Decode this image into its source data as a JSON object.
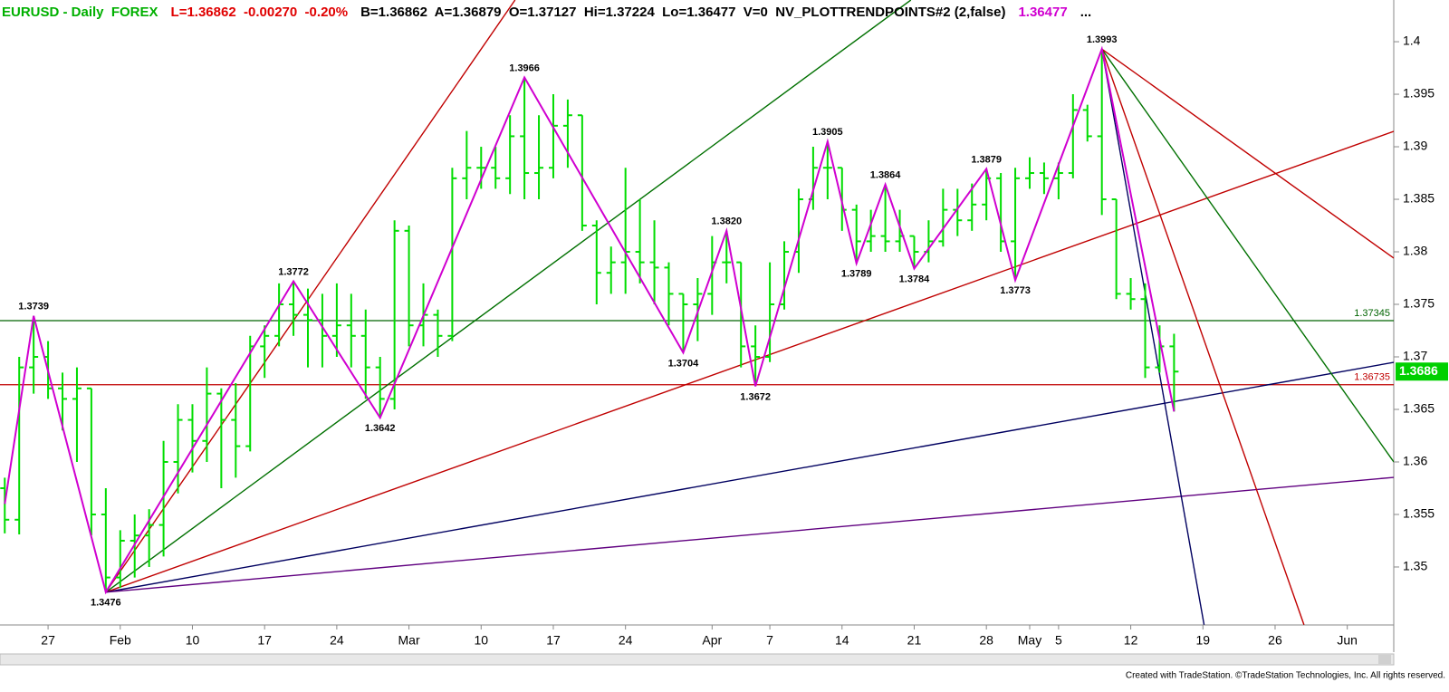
{
  "chart_data": {
    "type": "ohlc",
    "header": [
      {
        "text": "EURUSD - Daily  FOREX",
        "color": "#00b000"
      },
      {
        "text": "L=1.36862  -0.00270  -0.20%",
        "color": "#e00000"
      },
      {
        "text": "B=1.36862  A=1.36879  O=1.37127  Hi=1.37224  Lo=1.36477  V=0  NV_PLOTTRENDPOINTS#2 (2,false)",
        "color": "#000000"
      },
      {
        "text": "1.36477",
        "color": "#d000d0"
      },
      {
        "text": "...",
        "color": "#000000"
      }
    ],
    "footer": "Created with TradeStation. ©TradeStation Technologies, Inc. All rights reserved.",
    "bar_color": "#00dd00",
    "x": [
      -3,
      -2,
      -1,
      0,
      1,
      2,
      3,
      4,
      5,
      6,
      7,
      8,
      9,
      10,
      11,
      12,
      13,
      14,
      15,
      16,
      17,
      18,
      19,
      20,
      21,
      22,
      23,
      24,
      25,
      26,
      27,
      28,
      29,
      30,
      31,
      32,
      33,
      34,
      35,
      36,
      37,
      38,
      39,
      40,
      41,
      42,
      43,
      44,
      45,
      46,
      47,
      48,
      49,
      50,
      51,
      52,
      53,
      54,
      55,
      56,
      57,
      58,
      59,
      60,
      61,
      62,
      63,
      64,
      65,
      66,
      67,
      68,
      69,
      70,
      71,
      72,
      73,
      74,
      75,
      76,
      77,
      78
    ],
    "open": [
      1.3575,
      1.3545,
      1.369,
      1.37,
      1.367,
      1.366,
      1.367,
      1.355,
      1.349,
      1.3525,
      1.353,
      1.354,
      1.36,
      1.364,
      1.362,
      1.3665,
      1.364,
      1.3615,
      1.371,
      1.372,
      1.375,
      1.374,
      1.3735,
      1.372,
      1.373,
      1.372,
      1.369,
      1.366,
      1.382,
      1.373,
      1.374,
      1.372,
      1.387,
      1.388,
      1.388,
      1.387,
      1.391,
      1.3875,
      1.388,
      1.392,
      1.393,
      1.3825,
      1.378,
      1.379,
      1.38,
      1.379,
      1.3785,
      1.376,
      1.375,
      1.376,
      1.379,
      1.379,
      1.371,
      1.37,
      1.375,
      1.38,
      1.385,
      1.388,
      1.388,
      1.384,
      1.381,
      1.3815,
      1.381,
      1.3815,
      1.38,
      1.381,
      1.384,
      1.383,
      1.3845,
      1.387,
      1.381,
      1.387,
      1.3875,
      1.387,
      1.3875,
      1.3935,
      1.391,
      1.385,
      1.376,
      1.3755,
      1.369,
      1.371
    ],
    "high": [
      1.3585,
      1.37,
      1.3739,
      1.3715,
      1.3685,
      1.369,
      1.367,
      1.3575,
      1.3535,
      1.355,
      1.3555,
      1.362,
      1.3655,
      1.3655,
      1.369,
      1.367,
      1.3675,
      1.372,
      1.373,
      1.377,
      1.3772,
      1.3765,
      1.376,
      1.377,
      1.376,
      1.3745,
      1.37,
      1.383,
      1.3825,
      1.377,
      1.3745,
      1.388,
      1.3915,
      1.39,
      1.39,
      1.393,
      1.3966,
      1.393,
      1.395,
      1.3945,
      1.393,
      1.383,
      1.3805,
      1.388,
      1.385,
      1.383,
      1.379,
      1.376,
      1.3775,
      1.3815,
      1.382,
      1.379,
      1.373,
      1.379,
      1.381,
      1.386,
      1.39,
      1.3905,
      1.388,
      1.3845,
      1.384,
      1.3864,
      1.384,
      1.3815,
      1.383,
      1.386,
      1.386,
      1.3865,
      1.3879,
      1.3875,
      1.388,
      1.389,
      1.3885,
      1.3885,
      1.395,
      1.394,
      1.3993,
      1.385,
      1.3775,
      1.377,
      1.373,
      1.3722
    ],
    "low": [
      1.3532,
      1.3531,
      1.3665,
      1.366,
      1.363,
      1.36,
      1.353,
      1.3476,
      1.348,
      1.349,
      1.35,
      1.351,
      1.357,
      1.359,
      1.36,
      1.3575,
      1.3585,
      1.361,
      1.368,
      1.371,
      1.372,
      1.369,
      1.369,
      1.37,
      1.369,
      1.366,
      1.3642,
      1.365,
      1.371,
      1.371,
      1.37,
      1.3715,
      1.385,
      1.386,
      1.386,
      1.3855,
      1.385,
      1.385,
      1.387,
      1.388,
      1.382,
      1.375,
      1.376,
      1.376,
      1.377,
      1.375,
      1.373,
      1.3704,
      1.3715,
      1.374,
      1.377,
      1.369,
      1.3672,
      1.3695,
      1.3745,
      1.378,
      1.384,
      1.385,
      1.382,
      1.3789,
      1.38,
      1.38,
      1.38,
      1.3784,
      1.379,
      1.3805,
      1.3815,
      1.382,
      1.383,
      1.38,
      1.3773,
      1.386,
      1.3855,
      1.385,
      1.387,
      1.3905,
      1.3835,
      1.3755,
      1.3745,
      1.368,
      1.3685,
      1.3648
    ],
    "close": [
      1.3545,
      1.369,
      1.37,
      1.367,
      1.366,
      1.367,
      1.355,
      1.349,
      1.3525,
      1.353,
      1.354,
      1.36,
      1.364,
      1.362,
      1.3665,
      1.364,
      1.3615,
      1.371,
      1.372,
      1.375,
      1.374,
      1.3735,
      1.372,
      1.373,
      1.372,
      1.369,
      1.366,
      1.382,
      1.373,
      1.374,
      1.372,
      1.387,
      1.388,
      1.388,
      1.387,
      1.391,
      1.3875,
      1.388,
      1.392,
      1.393,
      1.3825,
      1.378,
      1.379,
      1.38,
      1.379,
      1.3785,
      1.376,
      1.375,
      1.376,
      1.379,
      1.379,
      1.371,
      1.37,
      1.375,
      1.38,
      1.385,
      1.388,
      1.388,
      1.384,
      1.381,
      1.3815,
      1.381,
      1.3815,
      1.38,
      1.381,
      1.384,
      1.383,
      1.3845,
      1.387,
      1.381,
      1.387,
      1.3875,
      1.387,
      1.3875,
      1.3935,
      1.391,
      1.385,
      1.376,
      1.3755,
      1.369,
      1.371,
      1.3686
    ],
    "pivots": {
      "color": "#d000d0",
      "x": [
        -3,
        -1,
        4,
        17,
        23,
        33,
        44,
        47,
        49,
        54,
        56,
        58,
        60,
        65,
        67,
        73,
        78
      ],
      "values": [
        1.356,
        1.3739,
        1.3476,
        1.3772,
        1.3642,
        1.3966,
        1.3704,
        1.382,
        1.3672,
        1.3905,
        1.3789,
        1.3864,
        1.3784,
        1.3879,
        1.3773,
        1.3993,
        1.3648
      ],
      "value_labels": [
        null,
        "1.3739",
        "1.3476",
        "1.3772",
        "1.3642",
        "1.3966",
        "1.3704",
        "1.3820",
        "1.3672",
        "1.3905",
        "1.3789",
        "1.3864",
        "1.3784",
        "1.3879",
        "1.3773",
        "1.3993",
        null
      ]
    },
    "lines": [
      {
        "color": "#c00000",
        "x": [
          4,
          32.35
        ],
        "values": [
          1.3476,
          1.40397
        ]
      },
      {
        "color": "#007000",
        "x": [
          4,
          59.77
        ],
        "values": [
          1.3476,
          1.40397
        ]
      },
      {
        "color": "#c00000",
        "x": [
          4,
          93.22
        ],
        "values": [
          1.3476,
          1.39147
        ]
      },
      {
        "color": "#000060",
        "x": [
          4,
          93.22
        ],
        "values": [
          1.3476,
          1.36948
        ]
      },
      {
        "color": "#600080",
        "x": [
          4,
          93.22
        ],
        "values": [
          1.3476,
          1.35853
        ]
      },
      {
        "color": "#000060",
        "x": [
          73,
          80.08
        ],
        "values": [
          1.3993,
          1.3445
        ]
      },
      {
        "color": "#c00000",
        "x": [
          73,
          87.0
        ],
        "values": [
          1.3993,
          1.3445
        ]
      },
      {
        "color": "#007000",
        "x": [
          73,
          93.22
        ],
        "values": [
          1.3993,
          1.36
        ]
      },
      {
        "color": "#c00000",
        "x": [
          73,
          93.22
        ],
        "values": [
          1.3993,
          1.3794
        ]
      }
    ],
    "levels": [
      {
        "value": 1.37345,
        "color": "#006400"
      },
      {
        "value": 1.36735,
        "color": "#c00000"
      }
    ],
    "last_price": 1.3686,
    "last_price_color": "#00d000",
    "xlim": [
      -3.33,
      93.22
    ],
    "ylim": [
      1.34448,
      1.40397
    ],
    "xticks": [
      {
        "value": 0,
        "label": "27"
      },
      {
        "value": 5,
        "label": "Feb"
      },
      {
        "value": 10,
        "label": "10"
      },
      {
        "value": 15,
        "label": "17"
      },
      {
        "value": 20,
        "label": "24"
      },
      {
        "value": 25,
        "label": "Mar"
      },
      {
        "value": 30,
        "label": "10"
      },
      {
        "value": 35,
        "label": "17"
      },
      {
        "value": 40,
        "label": "24"
      },
      {
        "value": 46,
        "label": "Apr"
      },
      {
        "value": 50,
        "label": "7"
      },
      {
        "value": 55,
        "label": "14"
      },
      {
        "value": 60,
        "label": "21"
      },
      {
        "value": 65,
        "label": "28"
      },
      {
        "value": 68,
        "label": "May"
      },
      {
        "value": 70,
        "label": "5"
      },
      {
        "value": 75,
        "label": "12"
      },
      {
        "value": 80,
        "label": "19"
      },
      {
        "value": 85,
        "label": "26"
      },
      {
        "value": 90,
        "label": "Jun"
      }
    ],
    "yticks": [
      1.35,
      1.355,
      1.36,
      1.365,
      1.37,
      1.375,
      1.38,
      1.385,
      1.39,
      1.395,
      1.4
    ]
  }
}
